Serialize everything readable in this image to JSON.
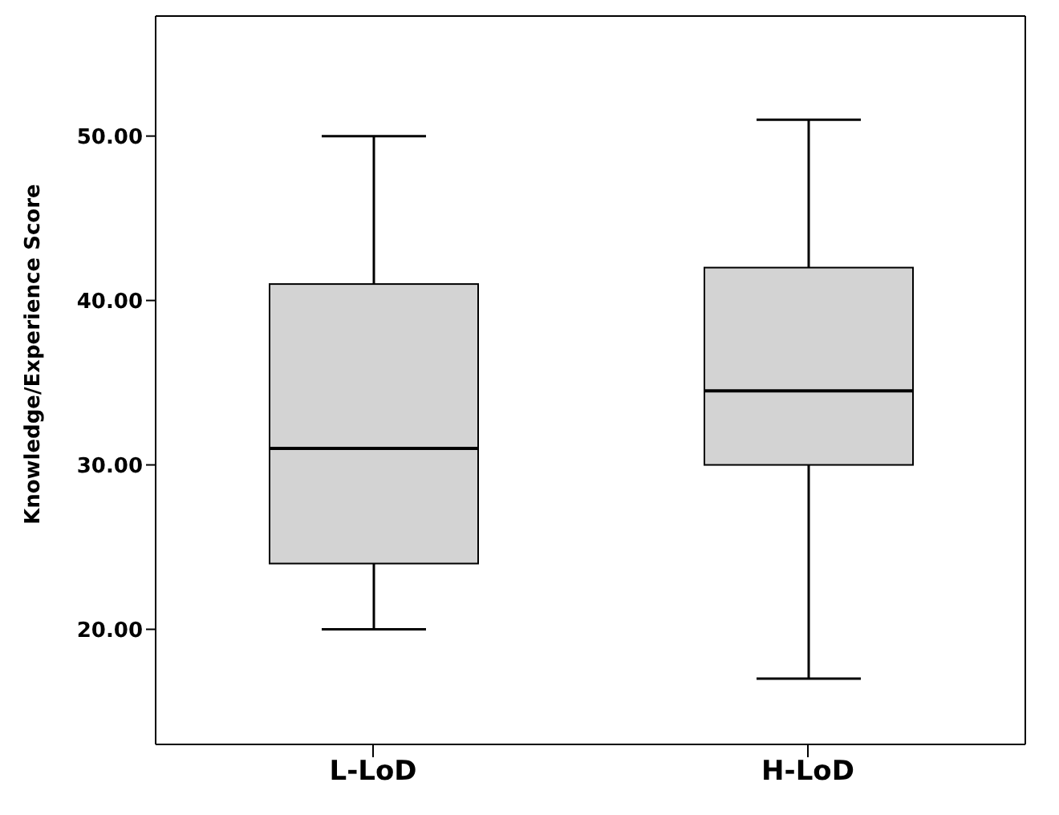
{
  "chart_data": {
    "type": "box",
    "ylabel": "Knowledge/Experience Score",
    "categories": [
      "L-LoD",
      "H-LoD"
    ],
    "color": "#d3d3d3",
    "boxes": [
      {
        "low": 20,
        "q1": 24,
        "median": 31,
        "q3": 41,
        "high": 50
      },
      {
        "low": 17,
        "q1": 30,
        "median": 34.5,
        "q3": 42,
        "high": 51
      }
    ],
    "ylim": [
      13,
      57.3
    ],
    "yticks": [
      {
        "value": 20,
        "label": "20.00"
      },
      {
        "value": 30,
        "label": "30.00"
      },
      {
        "value": 40,
        "label": "40.00"
      },
      {
        "value": 50,
        "label": "50.00"
      }
    ],
    "grid": false
  }
}
